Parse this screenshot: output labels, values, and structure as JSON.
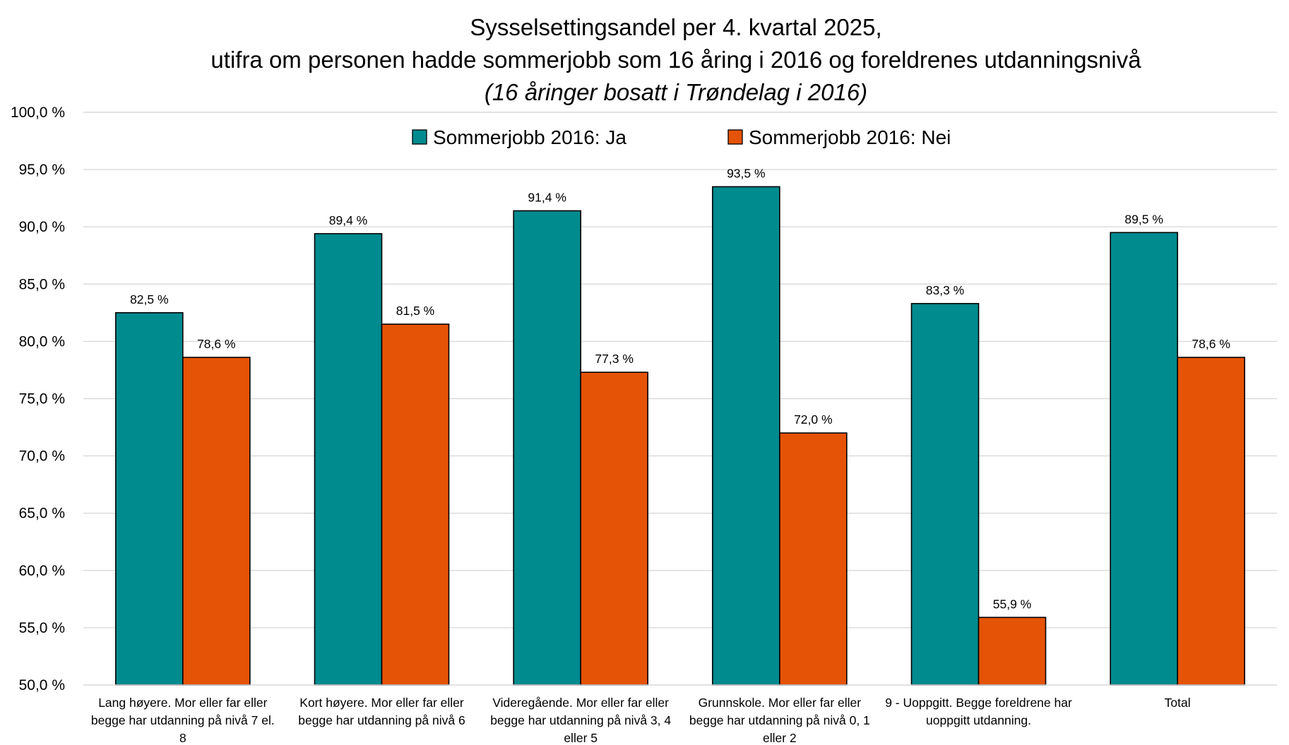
{
  "chart_data": {
    "type": "bar",
    "title": [
      "Sysselsettingsandel per 4. kvartal 2025,",
      "utifra om personen hadde sommerjobb som 16 åring i 2016 og  foreldrenes utdanningsnivå"
    ],
    "subtitle": "(16 åringer bosatt i Trøndelag i 2016)",
    "categories": [
      [
        "Lang høyere. Mor eller far eller",
        "begge har utdanning på nivå 7 el.",
        "8"
      ],
      [
        "Kort høyere. Mor eller far eller",
        "begge har utdanning på nivå 6"
      ],
      [
        "Videregående. Mor eller far eller",
        "begge har utdanning på nivå 3, 4",
        "eller 5"
      ],
      [
        "Grunnskole. Mor eller far eller",
        "begge har utdanning på nivå 0, 1",
        "eller 2"
      ],
      [
        "9 - Uoppgitt. Begge foreldrene har",
        "uoppgitt utdanning."
      ],
      [
        "Total"
      ]
    ],
    "series": [
      {
        "name": "Sommerjobb 2016: Ja",
        "color": "#008b8f",
        "values": [
          82.5,
          89.4,
          91.4,
          93.5,
          83.3,
          89.5
        ],
        "labels": [
          "82,5 %",
          "89,4 %",
          "91,4 %",
          "93,5 %",
          "83,3 %",
          "89,5 %"
        ]
      },
      {
        "name": "Sommerjobb 2016: Nei",
        "color": "#e55306",
        "values": [
          78.6,
          81.5,
          77.3,
          72.0,
          55.9,
          78.6
        ],
        "labels": [
          "78,6 %",
          "81,5 %",
          "77,3 %",
          "72,0 %",
          "55,9 %",
          "78,6 %"
        ]
      }
    ],
    "ylim": [
      50,
      100
    ],
    "yticks": [
      50,
      55,
      60,
      65,
      70,
      75,
      80,
      85,
      90,
      95,
      100
    ],
    "ytick_labels": [
      "50,0 %",
      "55,0 %",
      "60,0 %",
      "65,0 %",
      "70,0 %",
      "75,0 %",
      "80,0 %",
      "85,0 %",
      "90,0 %",
      "95,0 %",
      "100,0 %"
    ],
    "grid": true,
    "legend_position": "top-center"
  }
}
